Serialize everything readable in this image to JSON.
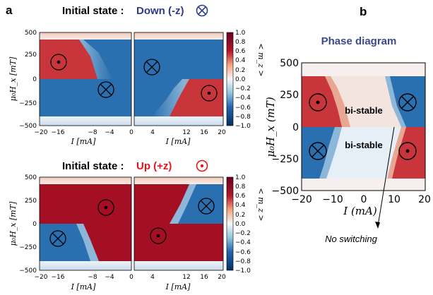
{
  "panel_labels": {
    "a": "a",
    "b": "b"
  },
  "titles": {
    "top_prefix": "Initial state :",
    "top_state": "Down (-z)",
    "bottom_prefix": "Initial state :",
    "bottom_state": "Up (+z)",
    "phase": "Phase diagram"
  },
  "colors": {
    "down_text": "#2e3a8c",
    "up_text": "#e8141b",
    "phase_title": "#3a4a8c",
    "red": "#b2182b",
    "blue": "#2166ac"
  },
  "colorbar": {
    "ticks": [
      "1.0",
      "0.8",
      "0.6",
      "0.4",
      "0.2",
      "0.0",
      "−0.2",
      "−0.4",
      "−0.6",
      "−0.8",
      "−1.0"
    ],
    "label": "< m_z >"
  },
  "axes_a": {
    "yticks": [
      "500",
      "250",
      "0",
      "−250",
      "−500"
    ],
    "xticks_left": [
      "−20",
      "−16",
      "−8",
      "−4",
      "0"
    ],
    "xticks_right": [
      "0",
      "4",
      "12",
      "16",
      "20"
    ],
    "ylabel": "μ₀H_x [mT]",
    "xlabel": "I [mA]"
  },
  "axes_b": {
    "yticks": [
      "500",
      "250",
      "0",
      "−250",
      "−500"
    ],
    "xticks": [
      "−20",
      "−10",
      "0",
      "10",
      "20"
    ],
    "ylabel": "μ₀H_x (mT)",
    "xlabel": "I (mA)"
  },
  "annotations": {
    "bistable_1": "bi-stable",
    "bistable_2": "bi-stable",
    "no_switching": "No switching"
  },
  "chart_data": [
    {
      "type": "heatmap",
      "panel": "a-top",
      "title": "Initial state : Down (-z)",
      "xlabel": "I [mA]",
      "ylabel": "μ0 Hx [mT]",
      "xlim": [
        -20,
        20
      ],
      "ylim": [
        -500,
        500
      ],
      "colorbar": {
        "label": "< m_z >",
        "range": [
          -1.0,
          1.0
        ]
      },
      "regions": [
        {
          "I_range": [
            -20,
            -10
          ],
          "H_range": [
            0,
            350
          ],
          "m_z": 1.0
        },
        {
          "I_range": [
            -10,
            20
          ],
          "H_range": [
            0,
            350
          ],
          "m_z": -1.0
        },
        {
          "I_range": [
            -20,
            10
          ],
          "H_range": [
            -350,
            0
          ],
          "m_z": -1.0
        },
        {
          "I_range": [
            10,
            20
          ],
          "H_range": [
            -350,
            0
          ],
          "m_z": 1.0
        }
      ],
      "markers": [
        {
          "I": -16,
          "H": 180,
          "symbol": "dot"
        },
        {
          "I": -5,
          "H": -110,
          "symbol": "cross"
        },
        {
          "I": 4,
          "H": 120,
          "symbol": "cross"
        },
        {
          "I": 17,
          "H": -150,
          "symbol": "dot"
        }
      ]
    },
    {
      "type": "heatmap",
      "panel": "a-bottom",
      "title": "Initial state : Up (+z)",
      "xlabel": "I [mA]",
      "ylabel": "μ0 Hx [mT]",
      "xlim": [
        -20,
        20
      ],
      "ylim": [
        -500,
        500
      ],
      "colorbar": {
        "label": "< m_z >",
        "range": [
          -1.0,
          1.0
        ]
      },
      "regions": [
        {
          "I_range": [
            -20,
            20
          ],
          "H_range": [
            0,
            350
          ],
          "m_z": 1.0
        },
        {
          "I_range": [
            -20,
            -10
          ],
          "H_range": [
            -350,
            0
          ],
          "m_z": -1.0
        },
        {
          "I_range": [
            -10,
            20
          ],
          "H_range": [
            -350,
            0
          ],
          "m_z": 1.0
        },
        {
          "I_range": [
            10,
            20
          ],
          "H_range": [
            0,
            350
          ],
          "m_z": -1.0
        }
      ],
      "markers": [
        {
          "I": -5,
          "H": 170,
          "symbol": "dot"
        },
        {
          "I": -17,
          "H": -150,
          "symbol": "cross"
        },
        {
          "I": 5,
          "H": -140,
          "symbol": "dot"
        },
        {
          "I": 16,
          "H": 150,
          "symbol": "cross"
        }
      ]
    },
    {
      "type": "heatmap",
      "panel": "b",
      "title": "Phase diagram",
      "xlabel": "I (mA)",
      "ylabel": "μ0 Hx (mT)",
      "xlim": [
        -20,
        20
      ],
      "ylim": [
        -500,
        500
      ],
      "regions": [
        {
          "I_range": [
            -20,
            -10
          ],
          "H_range": [
            0,
            350
          ],
          "m_z": 1.0
        },
        {
          "I_range": [
            -10,
            10
          ],
          "H_range": [
            0,
            350
          ],
          "state": "bi-stable"
        },
        {
          "I_range": [
            10,
            20
          ],
          "H_range": [
            0,
            350
          ],
          "m_z": -1.0
        },
        {
          "I_range": [
            -20,
            -10
          ],
          "H_range": [
            -350,
            0
          ],
          "m_z": -1.0
        },
        {
          "I_range": [
            -10,
            10
          ],
          "H_range": [
            -350,
            0
          ],
          "state": "bi-stable"
        },
        {
          "I_range": [
            10,
            20
          ],
          "H_range": [
            -350,
            0
          ],
          "m_z": 1.0
        }
      ],
      "markers": [
        {
          "I": -15,
          "H": 180,
          "symbol": "dot"
        },
        {
          "I": 14,
          "H": 180,
          "symbol": "cross"
        },
        {
          "I": -15,
          "H": -180,
          "symbol": "cross"
        },
        {
          "I": 14,
          "H": -180,
          "symbol": "dot"
        }
      ],
      "annotations": [
        "bi-stable",
        "bi-stable",
        "No switching"
      ]
    }
  ]
}
